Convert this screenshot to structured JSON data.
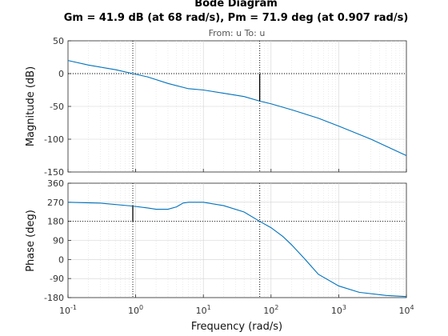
{
  "window": {
    "title": "Bode Diagram"
  },
  "chart_data": {
    "type": "line",
    "title": "Bode Diagram",
    "subtitle": "Gm = 41.9 dB (at 68 rad/s),  Pm = 71.9 deg (at 0.907 rad/s)",
    "io_label": "From: u  To: u",
    "xlabel": "Frequency  (rad/s)",
    "x_scale": "log",
    "xlim": [
      0.1,
      10000
    ],
    "x_ticks": [
      {
        "value": 0.1,
        "base": "10",
        "exp": "-1"
      },
      {
        "value": 1,
        "base": "10",
        "exp": "0"
      },
      {
        "value": 10,
        "base": "10",
        "exp": "1"
      },
      {
        "value": 100,
        "base": "10",
        "exp": "2"
      },
      {
        "value": 1000,
        "base": "10",
        "exp": "3"
      },
      {
        "value": 10000,
        "base": "10",
        "exp": "4"
      }
    ],
    "grid": true,
    "margins": {
      "gain_margin_db": 41.9,
      "phase_crossover_rad_s": 68,
      "phase_margin_deg": 71.9,
      "gain_crossover_rad_s": 0.907
    },
    "color": "#0072bd",
    "panels": [
      {
        "name": "magnitude",
        "ylabel": "Magnitude (dB)",
        "ylim": [
          -150,
          50
        ],
        "yticks": [
          "50",
          "0",
          "-50",
          "-100",
          "-150"
        ],
        "reference_line": 0,
        "x": [
          0.1,
          0.2,
          0.5,
          0.907,
          1.5,
          3,
          6,
          10,
          20,
          40,
          68,
          100,
          200,
          500,
          1000,
          3000,
          10000
        ],
        "y": [
          20,
          13,
          6,
          0,
          -5,
          -15,
          -23,
          -25,
          -30,
          -35,
          -41.9,
          -46,
          -55,
          -68,
          -80,
          -100,
          -125
        ]
      },
      {
        "name": "phase",
        "ylabel": "Phase (deg)",
        "ylim": [
          -180,
          360
        ],
        "yticks": [
          "360",
          "270",
          "180",
          "90",
          "0",
          "-90",
          "-180"
        ],
        "reference_line": 180,
        "x": [
          0.1,
          0.3,
          0.907,
          1.5,
          2,
          3,
          4,
          5,
          6,
          10,
          20,
          40,
          68,
          100,
          150,
          200,
          300,
          500,
          1000,
          2000,
          5000,
          10000
        ],
        "y": [
          270,
          266,
          251.9,
          243,
          237,
          237,
          248,
          266,
          270,
          270,
          254,
          224,
          180,
          150,
          108,
          70,
          10,
          -70,
          -125,
          -155,
          -170,
          -175
        ]
      }
    ]
  }
}
